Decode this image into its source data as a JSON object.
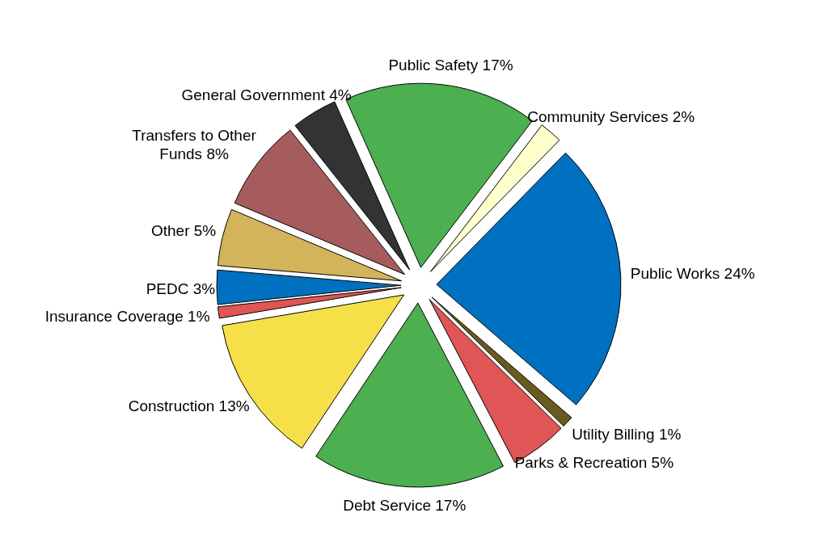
{
  "chart_data": {
    "type": "pie",
    "categories": [
      "Public Safety",
      "Community Services",
      "Public Works",
      "Utility Billing",
      "Parks & Recreation",
      "Debt Service",
      "Construction",
      "Insurance Coverage",
      "PEDC",
      "Other",
      "Transfers to Other Funds",
      "General Government"
    ],
    "values": [
      17,
      2,
      24,
      1,
      5,
      17,
      13,
      1,
      3,
      5,
      8,
      4
    ],
    "value_labels": [
      "17%",
      "2%",
      "24%",
      "1%",
      "5%",
      "17%",
      "13%",
      "1%",
      "3%",
      "5%",
      "8%",
      "4%"
    ],
    "colors": [
      "#4caf50",
      "#ffffcc",
      "#0070c0",
      "#6b5a1e",
      "#e05555",
      "#4caf50",
      "#f5e04a",
      "#e05555",
      "#0070c0",
      "#d4b45a",
      "#a65c5c",
      "#333333"
    ]
  }
}
